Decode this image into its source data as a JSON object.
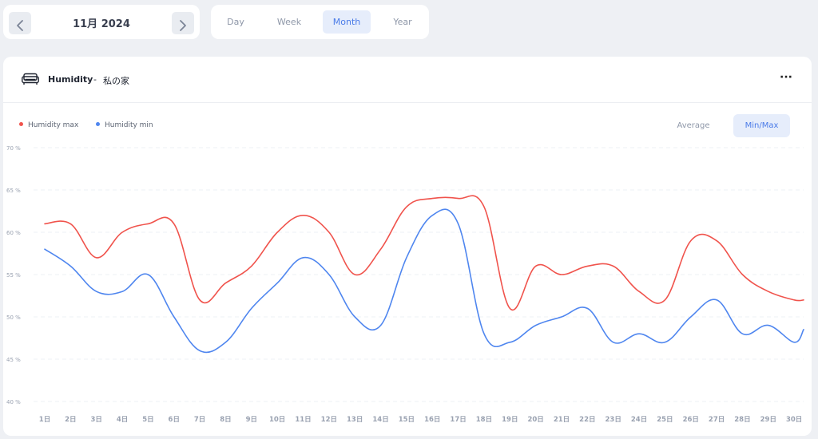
{
  "navigation": {
    "period_label": "11月 2024",
    "prev_icon": "chevron-left-icon",
    "next_icon": "chevron-right-icon"
  },
  "range_tabs": [
    {
      "label": "Day",
      "active": false
    },
    {
      "label": "Week",
      "active": false
    },
    {
      "label": "Month",
      "active": true
    },
    {
      "label": "Year",
      "active": false
    }
  ],
  "card": {
    "title": "Humidity",
    "separator": "-",
    "home": "私の家",
    "icon": "sofa-icon",
    "more_label": "···"
  },
  "modes": [
    {
      "label": "Average",
      "active": false
    },
    {
      "label": "Min/Max",
      "active": true
    }
  ],
  "colors": {
    "max": "#f0534c",
    "min": "#4f86ef",
    "accent": "#4a7be8",
    "accent_bg": "#e6edfb"
  },
  "chart_data": {
    "type": "line",
    "ylim": [
      40,
      70
    ],
    "yticks": [
      {
        "value": 40,
        "label": "40 %"
      },
      {
        "value": 45,
        "label": "45 %"
      },
      {
        "value": 50,
        "label": "50 %"
      },
      {
        "value": 55,
        "label": "55 %"
      },
      {
        "value": 60,
        "label": "60 %"
      },
      {
        "value": 65,
        "label": "65 %"
      },
      {
        "value": 70,
        "label": "70 %"
      }
    ],
    "categories": [
      "1日",
      "2日",
      "3日",
      "4日",
      "5日",
      "6日",
      "7日",
      "8日",
      "9日",
      "10日",
      "11日",
      "12日",
      "13日",
      "14日",
      "15日",
      "16日",
      "17日",
      "18日",
      "19日",
      "20日",
      "21日",
      "22日",
      "23日",
      "24日",
      "25日",
      "26日",
      "27日",
      "28日",
      "29日",
      "30日"
    ],
    "grid": true,
    "legend_position": "top-left",
    "series": [
      {
        "name": "Humidity max",
        "color": "#f0534c",
        "values": [
          61,
          61,
          57,
          60,
          61,
          61,
          52,
          54,
          56,
          60,
          62,
          60,
          55,
          58,
          63,
          64,
          64,
          63,
          51,
          56,
          55,
          56,
          56,
          53,
          52,
          59,
          59,
          55,
          53,
          52
        ]
      },
      {
        "name": "Humidity min",
        "color": "#4f86ef",
        "values": [
          58,
          56,
          53,
          53,
          55,
          50,
          46,
          47,
          51,
          54,
          57,
          55,
          50,
          49,
          57,
          62,
          61,
          48,
          47,
          49,
          50,
          51,
          47,
          48,
          47,
          50,
          52,
          48,
          49,
          47
        ]
      }
    ],
    "trailing_min_value": 48.5,
    "trailing_max_value": 52
  }
}
